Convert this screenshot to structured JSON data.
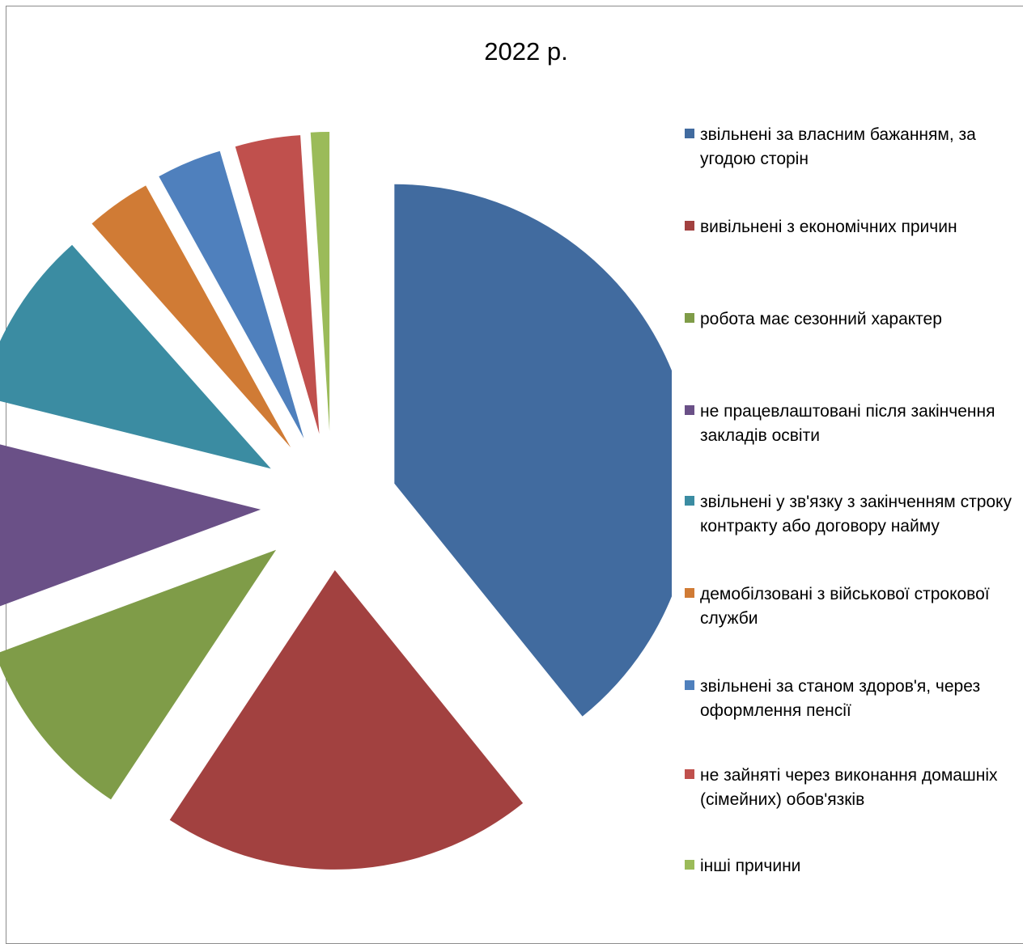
{
  "chart_data": {
    "type": "pie",
    "title": "2022 р.",
    "exploded": true,
    "legend_position": "right",
    "slices": [
      {
        "label": "звільнені за власним бажанням, за угодою сторін",
        "value": 39.0,
        "color": "#416b9f"
      },
      {
        "label": "вивільнені з економічних причин",
        "value": 20.0,
        "color": "#a24140"
      },
      {
        "label": "робота має сезонний характер",
        "value": 10.0,
        "color": "#7f9c48"
      },
      {
        "label": "не працевлаштовані після закінчення закладів освіти",
        "value": 9.5,
        "color": "#6a5087"
      },
      {
        "label": "звільнені у зв'язку з закінченням строку контракту або договору найму",
        "value": 9.5,
        "color": "#3b8ca2"
      },
      {
        "label": "демобілзовані з військової строкової служби",
        "value": 3.5,
        "color": "#d07b35"
      },
      {
        "label": "звільнені за станом здоров'я, через оформлення пенсії",
        "value": 3.5,
        "color": "#4f80bd"
      },
      {
        "label": "не зайняті через виконання домашніх (сімейних) обов'язків",
        "value": 3.5,
        "color": "#c0504d"
      },
      {
        "label": "інші причини",
        "value": 1.0,
        "color": "#9bbb59"
      }
    ]
  }
}
